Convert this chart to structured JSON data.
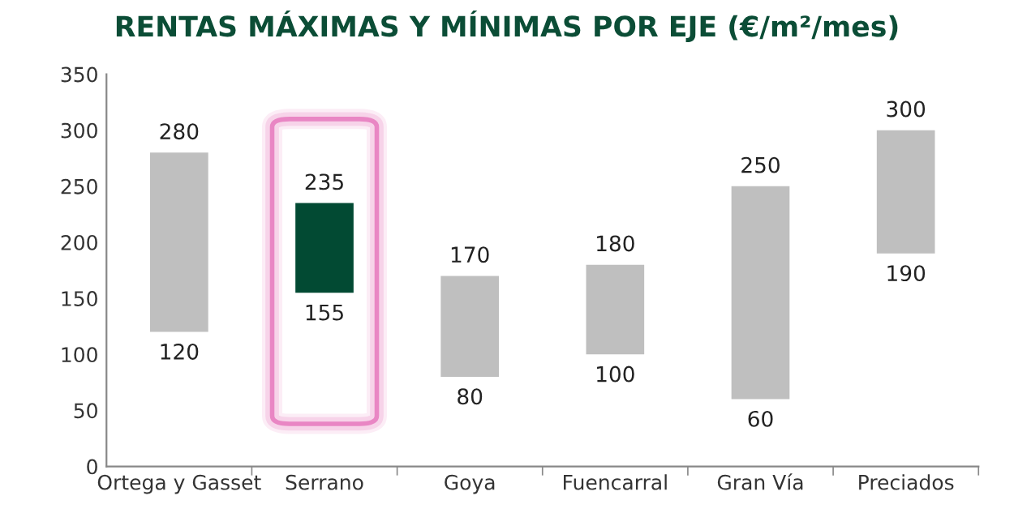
{
  "chart_data": {
    "type": "bar",
    "title": "RENTAS MÁXIMAS Y MÍNIMAS POR EJE (€/m²/mes)",
    "categories": [
      "Ortega y Gasset",
      "Serrano",
      "Goya",
      "Fuencarral",
      "Gran Vía",
      "Preciados"
    ],
    "base": [
      120,
      155,
      80,
      100,
      60,
      190
    ],
    "values": [
      160,
      80,
      90,
      80,
      190,
      110
    ],
    "colors": [
      "#bfbfbf",
      "#024a33",
      "#bfbfbf",
      "#bfbfbf",
      "#bfbfbf",
      "#bfbfbf"
    ],
    "ylim": [
      0,
      350
    ],
    "yticks": [
      0,
      50,
      100,
      150,
      200,
      250,
      300,
      350
    ],
    "grid": false,
    "annotations": [
      {
        "text": "280",
        "x": "Ortega y Gasset",
        "y": 280
      },
      {
        "text": "120",
        "x": "Ortega y Gasset",
        "y": 120
      },
      {
        "text": "235",
        "x": "Serrano",
        "y": 235
      },
      {
        "text": "155",
        "x": "Serrano",
        "y": 155
      },
      {
        "text": "170",
        "x": "Goya",
        "y": 170
      },
      {
        "text": "80",
        "x": "Goya",
        "y": 80
      },
      {
        "text": "180",
        "x": "Fuencarral",
        "y": 180
      },
      {
        "text": "100",
        "x": "Fuencarral",
        "y": 100
      },
      {
        "text": "250",
        "x": "Gran Vía",
        "y": 250
      },
      {
        "text": "60",
        "x": "Gran Vía",
        "y": 60
      },
      {
        "text": "300",
        "x": "Preciados",
        "y": 300
      },
      {
        "text": "190",
        "x": "Preciados",
        "y": 190
      }
    ]
  }
}
